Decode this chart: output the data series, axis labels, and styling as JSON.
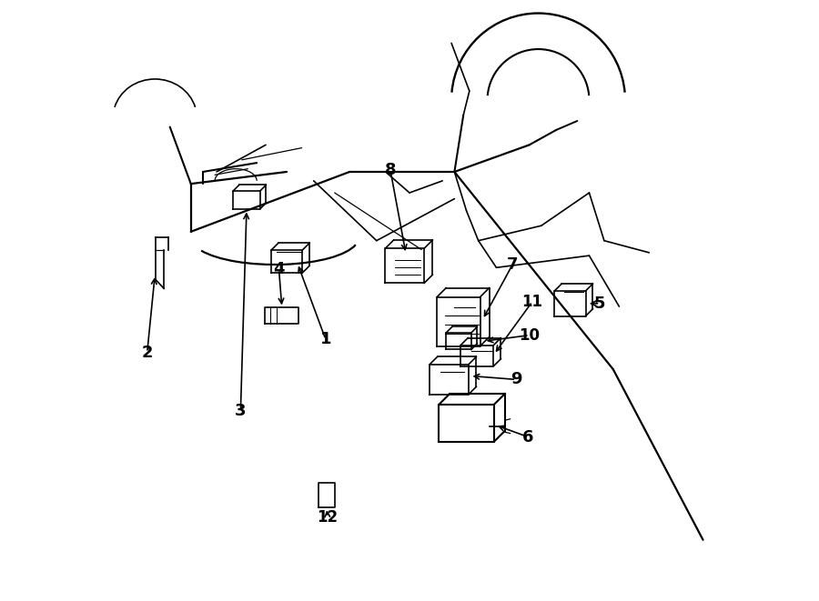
{
  "bg_color": "#ffffff",
  "line_color": "#000000",
  "line_width": 1.2,
  "fig_width": 9.0,
  "fig_height": 6.61,
  "dpi": 100
}
